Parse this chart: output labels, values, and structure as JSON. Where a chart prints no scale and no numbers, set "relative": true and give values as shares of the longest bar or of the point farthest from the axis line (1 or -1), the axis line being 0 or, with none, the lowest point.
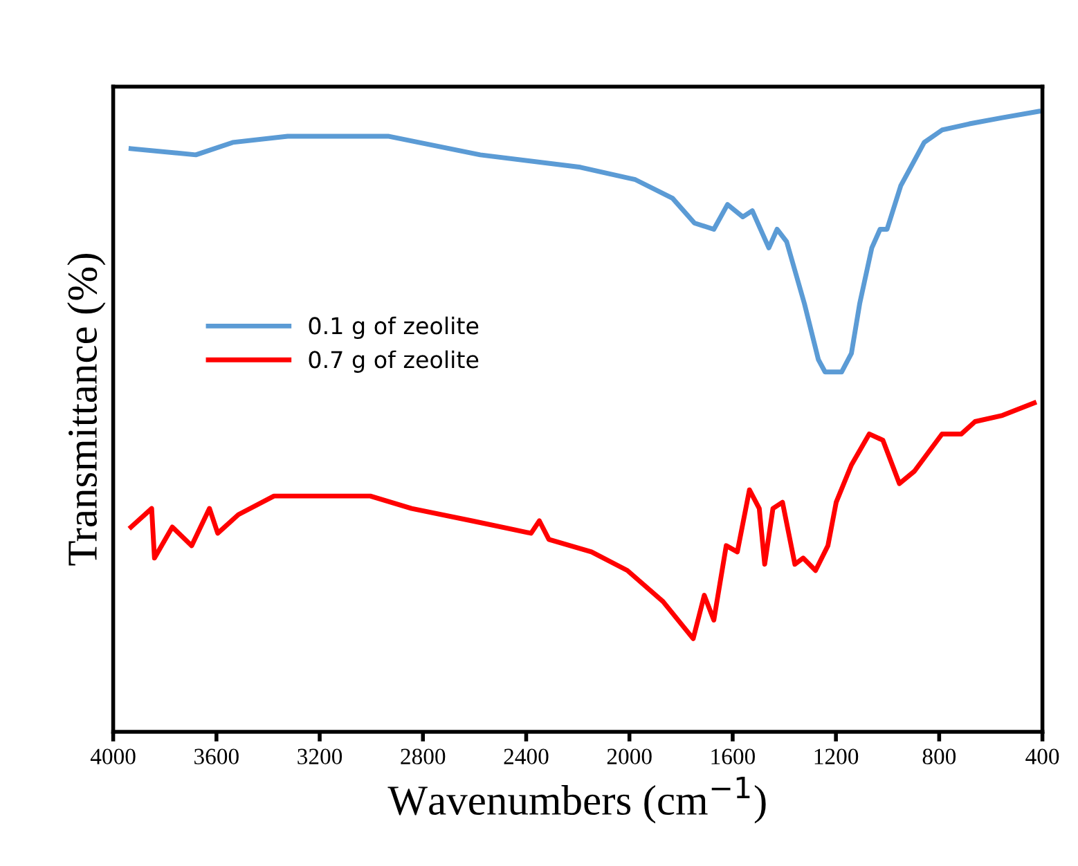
{
  "chart_data": {
    "type": "line",
    "relative": true,
    "xlabel": "Wavenumbers (cm$^{−1}$)",
    "ylabel": "Transmittance (%)",
    "xlim": [
      4000,
      400
    ],
    "xticks": [
      4000,
      3600,
      3200,
      2800,
      2400,
      2000,
      1600,
      1200,
      800,
      400
    ],
    "legend": "left",
    "grid": false,
    "marker": "none",
    "line_style": "solid",
    "tick_labels": "x",
    "series": [
      {
        "name": "0.1 g of zeolite",
        "color": "#5b9bd5",
        "x": [
          3931,
          3680,
          3537,
          3324,
          3201,
          2935,
          2578,
          2190,
          1977,
          1833,
          1748,
          1673,
          1620,
          1561,
          1524,
          1460,
          1428,
          1391,
          1322,
          1268,
          1242,
          1204,
          1178,
          1140,
          1108,
          1061,
          1029,
          1002,
          949,
          858,
          789,
          683,
          555,
          416
        ],
        "values": [
          0.94,
          0.93,
          0.95,
          0.96,
          0.96,
          0.96,
          0.93,
          0.91,
          0.89,
          0.86,
          0.82,
          0.81,
          0.85,
          0.83,
          0.84,
          0.78,
          0.81,
          0.79,
          0.69,
          0.6,
          0.58,
          0.58,
          0.58,
          0.61,
          0.69,
          0.78,
          0.81,
          0.81,
          0.88,
          0.95,
          0.97,
          0.98,
          0.99,
          1.0
        ]
      },
      {
        "name": "0.7 g of zeolite",
        "color": "#ff0000",
        "x": [
          3931,
          3851,
          3840,
          3771,
          3696,
          3627,
          3595,
          3515,
          3377,
          3191,
          3004,
          2844,
          2610,
          2381,
          2349,
          2312,
          2147,
          2008,
          1870,
          1753,
          1710,
          1673,
          1625,
          1582,
          1535,
          1497,
          1476,
          1444,
          1407,
          1359,
          1327,
          1279,
          1231,
          1199,
          1140,
          1071,
          1018,
          954,
          896,
          789,
          714,
          661,
          555,
          432
        ],
        "values": [
          0.33,
          0.36,
          0.28,
          0.33,
          0.3,
          0.36,
          0.32,
          0.35,
          0.38,
          0.38,
          0.38,
          0.36,
          0.34,
          0.32,
          0.34,
          0.31,
          0.29,
          0.26,
          0.21,
          0.15,
          0.22,
          0.18,
          0.3,
          0.29,
          0.39,
          0.36,
          0.27,
          0.36,
          0.37,
          0.27,
          0.28,
          0.26,
          0.3,
          0.37,
          0.43,
          0.48,
          0.47,
          0.4,
          0.42,
          0.48,
          0.48,
          0.5,
          0.51,
          0.53
        ]
      }
    ]
  }
}
